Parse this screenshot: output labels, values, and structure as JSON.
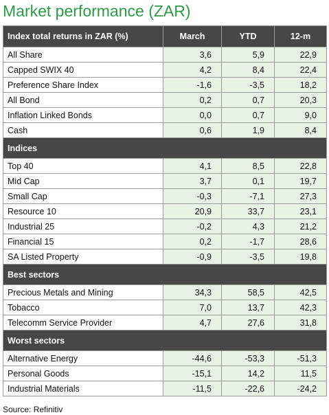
{
  "title": "Market performance (ZAR)",
  "header": {
    "label": "Index total returns in ZAR (%)",
    "columns": [
      "March",
      "YTD",
      "12-m"
    ]
  },
  "sections": [
    {
      "rows": [
        {
          "label": "All Share",
          "values": [
            "3,6",
            "5,9",
            "22,9"
          ]
        },
        {
          "label": "Capped SWIX 40",
          "values": [
            "4,2",
            "8,4",
            "22,4"
          ]
        },
        {
          "label": "Preference Share Index",
          "values": [
            "-1,6",
            "-3,5",
            "18,2"
          ]
        },
        {
          "label": "All Bond",
          "values": [
            "0,2",
            "0,7",
            "20,3"
          ]
        },
        {
          "label": "Inflation Linked Bonds",
          "values": [
            "0,0",
            "0,7",
            "9,0"
          ]
        },
        {
          "label": "Cash",
          "values": [
            "0,6",
            "1,9",
            "8,4"
          ]
        }
      ]
    },
    {
      "title": "Indices",
      "rows": [
        {
          "label": "Top 40",
          "values": [
            "4,1",
            "8,5",
            "22,8"
          ]
        },
        {
          "label": "Mid Cap",
          "values": [
            "3,7",
            "0,1",
            "19,7"
          ]
        },
        {
          "label": "Small Cap",
          "values": [
            "-0,3",
            "-7,1",
            "27,3"
          ]
        },
        {
          "label": "Resource 10",
          "values": [
            "20,9",
            "33,7",
            "23,1"
          ]
        },
        {
          "label": "Industrial 25",
          "values": [
            "-0,2",
            "4,3",
            "21,2"
          ]
        },
        {
          "label": "Financial 15",
          "values": [
            "0,2",
            "-1,7",
            "28,6"
          ]
        },
        {
          "label": "SA Listed Property",
          "values": [
            "-0,9",
            "-3,5",
            "19,8"
          ]
        }
      ]
    },
    {
      "title": "Best sectors",
      "rows": [
        {
          "label": "Precious Metals and Mining",
          "values": [
            "34,3",
            "58,5",
            "42,5"
          ]
        },
        {
          "label": "Tobacco",
          "values": [
            "7,0",
            "13,7",
            "42,3"
          ]
        },
        {
          "label": "Telecomm Service Provider",
          "values": [
            "4,7",
            "27,6",
            "31,8"
          ]
        }
      ]
    },
    {
      "title": "Worst sectors",
      "rows": [
        {
          "label": "Alternative Energy",
          "values": [
            "-44,6",
            "-53,3",
            "-51,3"
          ]
        },
        {
          "label": "Personal Goods",
          "values": [
            "-15,1",
            "14,2",
            "11,5"
          ]
        },
        {
          "label": "Industrial Materials",
          "values": [
            "-11,5",
            "-22,6",
            "-24,2"
          ]
        }
      ]
    }
  ],
  "source": "Source: Refinitiv"
}
